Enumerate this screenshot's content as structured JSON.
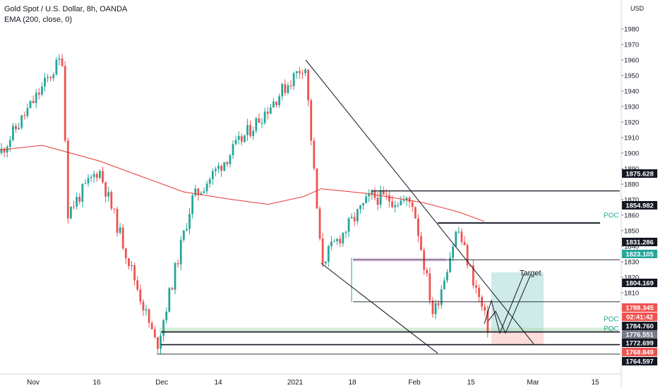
{
  "chart_data": {
    "type": "candlestick",
    "title": "Gold Spot / U.S. Dollar, 8h, OANDA",
    "indicator": "EMA (200, close, 0)",
    "currency": "USD",
    "ylim": [
      1752,
      1992
    ],
    "y_ticks": [
      1800,
      1810,
      1820,
      1830,
      1840,
      1850,
      1860,
      1870,
      1880,
      1890,
      1900,
      1910,
      1920,
      1930,
      1940,
      1950,
      1960,
      1970,
      1980
    ],
    "x_ticks": [
      "Nov",
      "16",
      "Dec",
      "14",
      "2021",
      "18",
      "Feb",
      "15",
      "Mar",
      "15"
    ],
    "key_points": [
      {
        "x": "start",
        "y": 1900
      },
      {
        "x": "Nov 9",
        "y": 1962
      },
      {
        "x": "Nov 10",
        "y": 1862
      },
      {
        "x": "Nov 17",
        "y": 1890
      },
      {
        "x": "Nov 30",
        "y": 1775
      },
      {
        "x": "Dec 16",
        "y": 1870
      },
      {
        "x": "Jan 6",
        "y": 1958
      },
      {
        "x": "Jan 11",
        "y": 1830
      },
      {
        "x": "Jan 20",
        "y": 1872
      },
      {
        "x": "Feb 1",
        "y": 1868
      },
      {
        "x": "Feb 4",
        "y": 1795
      },
      {
        "x": "Feb 11",
        "y": 1852
      },
      {
        "x": "Feb 17",
        "y": 1786
      }
    ],
    "ema_200": [
      1902,
      1905,
      1895,
      1885,
      1875,
      1870,
      1867,
      1872,
      1877,
      1874,
      1868,
      1862,
      1856
    ],
    "price_labels": [
      {
        "value": "1875.628",
        "color": "#131722"
      },
      {
        "value": "1854.982",
        "color": "#131722"
      },
      {
        "value": "1831.286",
        "color": "#131722"
      },
      {
        "value": "1823.105",
        "color": "#26a69a"
      },
      {
        "value": "1804.169",
        "color": "#131722"
      },
      {
        "value": "1788.345",
        "color": "#ef5350"
      },
      {
        "value": "02:41:42",
        "color": "#ef5350"
      },
      {
        "value": "1784.760",
        "color": "#131722"
      },
      {
        "value": "1776.551",
        "color": "#787b86"
      },
      {
        "value": "1772.699",
        "color": "#131722"
      },
      {
        "value": "1768.849",
        "color": "#ef5350"
      },
      {
        "value": "1764.597",
        "color": "#131722"
      }
    ],
    "annotations": {
      "poc_label": "POC",
      "target_label": "Target",
      "poc_levels": [
        1854.982,
        1788.345,
        1784.76
      ],
      "horizontal_levels": [
        1875.628,
        1831.286,
        1804.169,
        1784.76,
        1776.551,
        1770.5
      ],
      "long_position": {
        "entry": 1784.76,
        "target": 1823.105,
        "stop": 1776.551
      }
    },
    "grid": false,
    "legend": "top-left"
  },
  "colors": {
    "up": "#26a69a",
    "down": "#ef5350",
    "ema": "#e53935",
    "line": "#131722",
    "poc": "#26a69a",
    "axis_text": "#131722"
  }
}
